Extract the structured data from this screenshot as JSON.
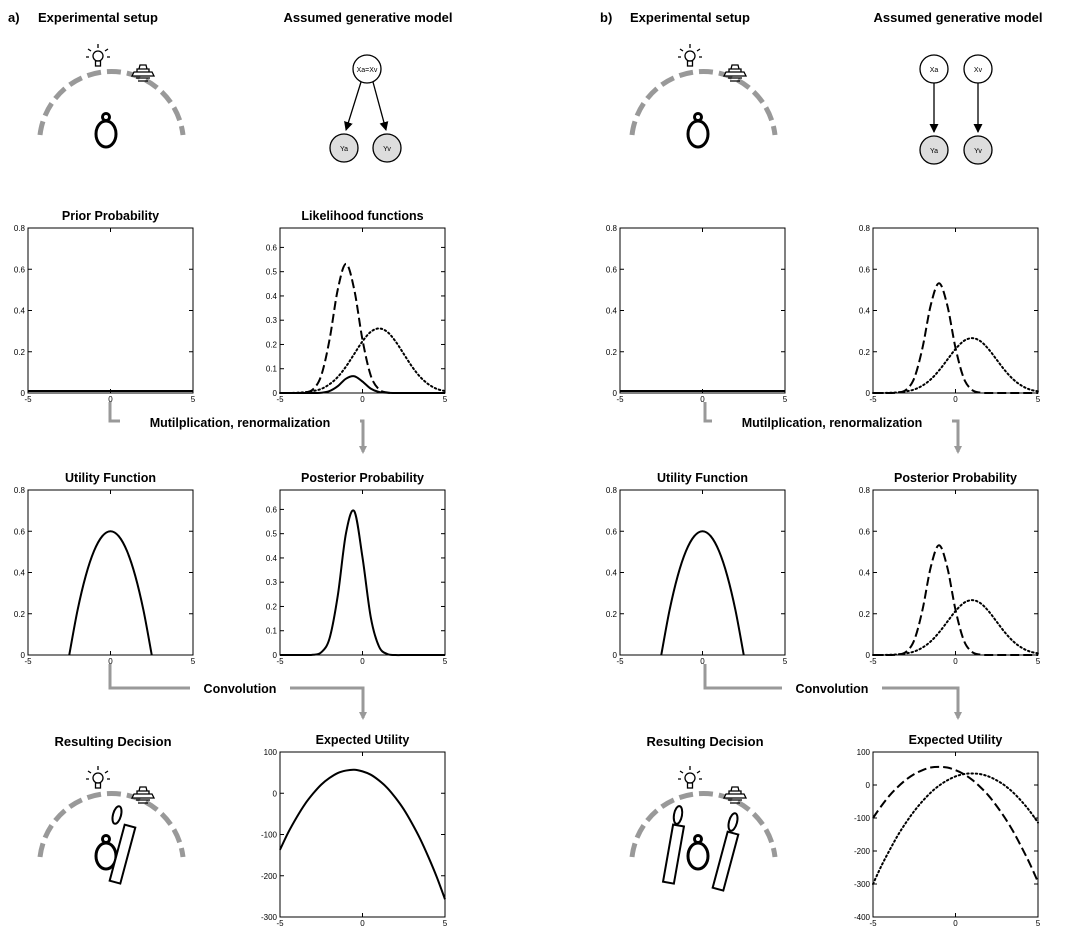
{
  "panels": [
    {
      "label": "a)",
      "setup": "Experimental setup",
      "model": "Assumed generative model",
      "step1": "Mutilplication, renormalization",
      "step2": "Convolution",
      "decision": "Resulting Decision",
      "nodes": [
        "Xa=Xv",
        "Ya",
        "Yv"
      ]
    },
    {
      "label": "b)",
      "setup": "Experimental setup",
      "model": "Assumed generative model",
      "step1": "Mutilplication, renormalization",
      "step2": "Convolution",
      "decision": "Resulting Decision",
      "nodes": [
        "Xa",
        "Xv",
        "Ya",
        "Yv"
      ]
    }
  ],
  "chart_data": [
    {
      "type": "line",
      "title": "Prior Probability",
      "xlim": [
        -5,
        5
      ],
      "xticks": [
        -5,
        0,
        5
      ],
      "ylim": [
        0,
        0.8
      ],
      "yticks": [
        0,
        0.2,
        0.4,
        0.6,
        0.8
      ],
      "x": [
        -5,
        -4.5,
        -4,
        -3.5,
        -3,
        -2.5,
        -2,
        -1.5,
        -1,
        -0.5,
        0,
        0.5,
        1,
        1.5,
        2,
        2.5,
        3,
        3.5,
        4,
        4.5,
        5
      ],
      "series": [
        {
          "color": "#000",
          "style": "solid",
          "values": [
            0.01,
            0.01,
            0.01,
            0.01,
            0.01,
            0.01,
            0.01,
            0.01,
            0.01,
            0.01,
            0.01,
            0.01,
            0.01,
            0.01,
            0.01,
            0.01,
            0.01,
            0.01,
            0.01,
            0.01,
            0.01
          ]
        }
      ]
    },
    {
      "type": "line",
      "title": "Likelihood functions",
      "xlim": [
        -5,
        5
      ],
      "xticks": [
        -5,
        0,
        5
      ],
      "ylim": [
        0,
        0.68
      ],
      "yticks": [
        0,
        0.1,
        0.2,
        0.3,
        0.4,
        0.5,
        0.6
      ],
      "x": [
        -5,
        -4.5,
        -4,
        -3.5,
        -3,
        -2.5,
        -2,
        -1.5,
        -1,
        -0.5,
        0,
        0.5,
        1,
        1.5,
        2,
        2.5,
        3,
        3.5,
        4,
        4.5,
        5
      ],
      "series": [
        {
          "color": "#000",
          "style": "dashed",
          "values": [
            0,
            0,
            0,
            0.002,
            0.015,
            0.072,
            0.219,
            0.426,
            0.532,
            0.426,
            0.219,
            0.072,
            0.015,
            0.002,
            0,
            0,
            0,
            0,
            0,
            0,
            0
          ]
        },
        {
          "color": "#000",
          "style": "dotted",
          "values": [
            0,
            0,
            0.001,
            0.003,
            0.008,
            0.017,
            0.036,
            0.066,
            0.109,
            0.161,
            0.213,
            0.252,
            0.266,
            0.252,
            0.213,
            0.161,
            0.109,
            0.066,
            0.036,
            0.017,
            0.008
          ]
        },
        {
          "color": "#000",
          "style": "solid",
          "values": [
            0,
            0,
            0,
            0,
            0,
            0.001,
            0.008,
            0.028,
            0.059,
            0.069,
            0.047,
            0.018,
            0.004,
            0.001,
            0,
            0,
            0,
            0,
            0,
            0,
            0
          ]
        }
      ]
    },
    {
      "type": "line",
      "title": "Utility Function",
      "xlim": [
        -5,
        5
      ],
      "xticks": [
        -5,
        0,
        5
      ],
      "ylim": [
        0,
        0.8
      ],
      "yticks": [
        0,
        0.2,
        0.4,
        0.6,
        0.8
      ],
      "x": [
        -5,
        -4.5,
        -4,
        -3.5,
        -3,
        -2.5,
        -2,
        -1.5,
        -1,
        -0.5,
        0,
        0.5,
        1,
        1.5,
        2,
        2.5,
        3,
        3.5,
        4,
        4.5,
        5
      ],
      "series": [
        {
          "color": "#000",
          "style": "solid",
          "values": [
            null,
            null,
            null,
            null,
            null,
            0,
            0.216,
            0.384,
            0.504,
            0.576,
            0.6,
            0.576,
            0.504,
            0.384,
            0.216,
            0,
            null,
            null,
            null,
            null,
            null
          ]
        }
      ]
    },
    {
      "type": "line",
      "title": "Posterior Probability",
      "xlim": [
        -5,
        5
      ],
      "xticks": [
        -5,
        0,
        5
      ],
      "ylim": [
        0,
        0.68
      ],
      "yticks": [
        0,
        0.1,
        0.2,
        0.3,
        0.4,
        0.5,
        0.6
      ],
      "x": [
        -5,
        -4.5,
        -4,
        -3.5,
        -3,
        -2.5,
        -2,
        -1.5,
        -1,
        -0.5,
        0,
        0.5,
        1,
        1.5,
        2,
        2.5,
        3,
        3.5,
        4,
        4.5,
        5
      ],
      "series": [
        {
          "color": "#000",
          "style": "solid",
          "values": [
            0,
            0,
            0,
            0,
            0.001,
            0.011,
            0.068,
            0.244,
            0.502,
            0.593,
            0.402,
            0.156,
            0.035,
            0.004,
            0,
            0,
            0,
            0,
            0,
            0,
            0
          ]
        }
      ]
    },
    {
      "type": "line",
      "title": "Expected Utility",
      "xlim": [
        -5,
        5
      ],
      "xticks": [
        -5,
        0,
        5
      ],
      "ylim": [
        -300,
        100
      ],
      "yticks": [
        -300,
        -200,
        -100,
        0,
        100
      ],
      "x": [
        -5,
        -4.5,
        -4,
        -3.5,
        -3,
        -2.5,
        -2,
        -1.5,
        -1,
        -0.5,
        0,
        0.5,
        1,
        1.5,
        2,
        2.5,
        3,
        3.5,
        4,
        4.5,
        5
      ],
      "series": [
        {
          "color": "#000",
          "style": "solid",
          "values": [
            -137,
            -95,
            -59,
            -27,
            -1,
            21,
            37,
            49,
            55,
            57,
            53,
            45,
            31,
            13,
            -11,
            -39,
            -73,
            -111,
            -155,
            -203,
            -257
          ]
        }
      ]
    },
    {
      "type": "line",
      "xlim": [
        -5,
        5
      ],
      "xticks": [
        -5,
        0,
        5
      ],
      "ylim": [
        0,
        0.8
      ],
      "yticks": [
        0,
        0.2,
        0.4,
        0.6,
        0.8
      ],
      "x": [
        -5,
        -4.5,
        -4,
        -3.5,
        -3,
        -2.5,
        -2,
        -1.5,
        -1,
        -0.5,
        0,
        0.5,
        1,
        1.5,
        2,
        2.5,
        3,
        3.5,
        4,
        4.5,
        5
      ],
      "series": [
        {
          "color": "#000",
          "style": "solid",
          "values": [
            0.01,
            0.01,
            0.01,
            0.01,
            0.01,
            0.01,
            0.01,
            0.01,
            0.01,
            0.01,
            0.01,
            0.01,
            0.01,
            0.01,
            0.01,
            0.01,
            0.01,
            0.01,
            0.01,
            0.01,
            0.01
          ]
        }
      ]
    },
    {
      "type": "line",
      "xlim": [
        -5,
        5
      ],
      "xticks": [
        -5,
        0,
        5
      ],
      "ylim": [
        0,
        0.8
      ],
      "yticks": [
        0,
        0.2,
        0.4,
        0.6,
        0.8
      ],
      "x": [
        -5,
        -4.5,
        -4,
        -3.5,
        -3,
        -2.5,
        -2,
        -1.5,
        -1,
        -0.5,
        0,
        0.5,
        1,
        1.5,
        2,
        2.5,
        3,
        3.5,
        4,
        4.5,
        5
      ],
      "series": [
        {
          "color": "#000",
          "style": "dashed",
          "values": [
            0,
            0,
            0,
            0.002,
            0.015,
            0.072,
            0.219,
            0.426,
            0.532,
            0.426,
            0.219,
            0.072,
            0.015,
            0.002,
            0,
            0,
            0,
            0,
            0,
            0,
            0
          ]
        },
        {
          "color": "#000",
          "style": "dotted",
          "values": [
            0,
            0,
            0.001,
            0.003,
            0.008,
            0.017,
            0.036,
            0.066,
            0.109,
            0.161,
            0.213,
            0.252,
            0.266,
            0.252,
            0.213,
            0.161,
            0.109,
            0.066,
            0.036,
            0.017,
            0.008
          ]
        }
      ]
    },
    {
      "type": "line",
      "title": "Utility Function",
      "xlim": [
        -5,
        5
      ],
      "xticks": [
        -5,
        0,
        5
      ],
      "ylim": [
        0,
        0.8
      ],
      "yticks": [
        0,
        0.2,
        0.4,
        0.6,
        0.8
      ],
      "x": [
        -5,
        -4.5,
        -4,
        -3.5,
        -3,
        -2.5,
        -2,
        -1.5,
        -1,
        -0.5,
        0,
        0.5,
        1,
        1.5,
        2,
        2.5,
        3,
        3.5,
        4,
        4.5,
        5
      ],
      "series": [
        {
          "color": "#000",
          "style": "solid",
          "values": [
            null,
            null,
            null,
            null,
            null,
            0,
            0.216,
            0.384,
            0.504,
            0.576,
            0.6,
            0.576,
            0.504,
            0.384,
            0.216,
            0,
            null,
            null,
            null,
            null,
            null
          ]
        }
      ]
    },
    {
      "type": "line",
      "title": "Posterior Probability",
      "xlim": [
        -5,
        5
      ],
      "xticks": [
        -5,
        0,
        5
      ],
      "ylim": [
        0,
        0.8
      ],
      "yticks": [
        0,
        0.2,
        0.4,
        0.6,
        0.8
      ],
      "x": [
        -5,
        -4.5,
        -4,
        -3.5,
        -3,
        -2.5,
        -2,
        -1.5,
        -1,
        -0.5,
        0,
        0.5,
        1,
        1.5,
        2,
        2.5,
        3,
        3.5,
        4,
        4.5,
        5
      ],
      "series": [
        {
          "color": "#000",
          "style": "dashed",
          "values": [
            0,
            0,
            0,
            0.002,
            0.015,
            0.072,
            0.219,
            0.426,
            0.532,
            0.426,
            0.219,
            0.072,
            0.015,
            0.002,
            0,
            0,
            0,
            0,
            0,
            0,
            0
          ]
        },
        {
          "color": "#000",
          "style": "dotted",
          "values": [
            0,
            0,
            0.001,
            0.003,
            0.008,
            0.017,
            0.036,
            0.066,
            0.109,
            0.161,
            0.213,
            0.252,
            0.266,
            0.252,
            0.213,
            0.161,
            0.109,
            0.066,
            0.036,
            0.017,
            0.008
          ]
        }
      ]
    },
    {
      "type": "line",
      "title": "Expected Utility",
      "xlim": [
        -5,
        5
      ],
      "xticks": [
        -5,
        0,
        5
      ],
      "ylim": [
        -400,
        100
      ],
      "yticks": [
        -400,
        -300,
        -200,
        -100,
        0,
        100
      ],
      "x": [
        -5,
        -4.5,
        -4,
        -3.5,
        -3,
        -2.5,
        -2,
        -1.5,
        -1,
        -0.5,
        0,
        0.5,
        1,
        1.5,
        2,
        2.5,
        3,
        3.5,
        4,
        4.5,
        5
      ],
      "series": [
        {
          "color": "#000",
          "style": "dashed",
          "values": [
            -100,
            -64,
            -32,
            -6,
            16,
            33,
            45,
            53,
            55,
            53,
            45,
            33,
            16,
            -6,
            -32,
            -64,
            -100,
            -141,
            -188,
            -238,
            -294
          ]
        },
        {
          "color": "#000",
          "style": "dotted",
          "values": [
            -300,
            -246,
            -198,
            -153,
            -114,
            -79,
            -49,
            -23,
            -2,
            14,
            26,
            33,
            35,
            33,
            26,
            14,
            -2,
            -23,
            -49,
            -79,
            -114
          ]
        }
      ]
    }
  ]
}
